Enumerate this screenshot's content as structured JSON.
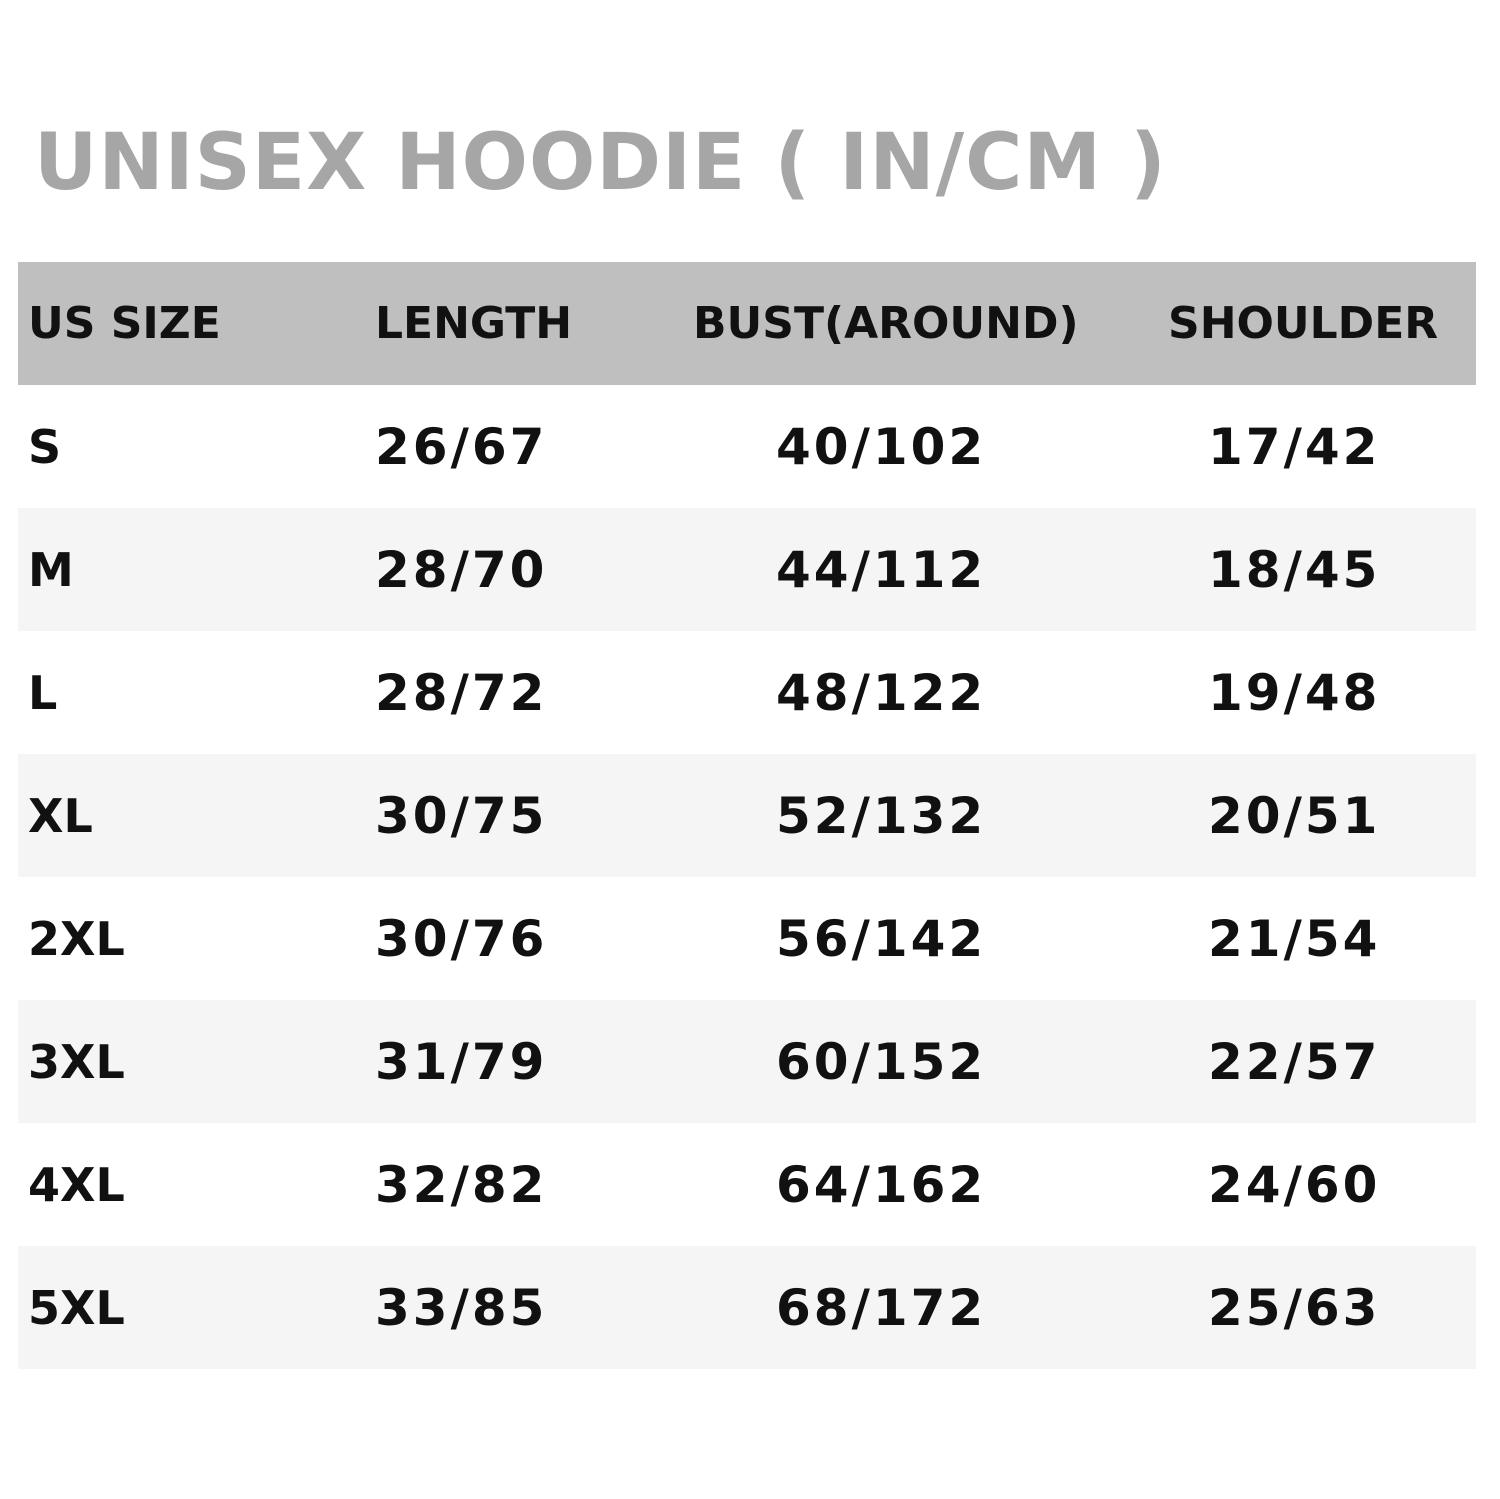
{
  "title": "UNISEX HOODIE ( IN/CM )",
  "colors": {
    "title": "#a6a6a6",
    "header_bg": "#bfbfbf",
    "alt_row_bg": "#f5f5f5",
    "text": "#111111"
  },
  "table": {
    "headers": [
      "US SIZE",
      "LENGTH",
      "BUST(AROUND)",
      "SHOULDER"
    ],
    "rows": [
      [
        "S",
        "26/67",
        "40/102",
        "17/42"
      ],
      [
        "M",
        "28/70",
        "44/112",
        "18/45"
      ],
      [
        "L",
        "28/72",
        "48/122",
        "19/48"
      ],
      [
        "XL",
        "30/75",
        "52/132",
        "20/51"
      ],
      [
        "2XL",
        "30/76",
        "56/142",
        "21/54"
      ],
      [
        "3XL",
        "31/79",
        "60/152",
        "22/57"
      ],
      [
        "4XL",
        "32/82",
        "64/162",
        "24/60"
      ],
      [
        "5XL",
        "33/85",
        "68/172",
        "25/63"
      ]
    ]
  }
}
